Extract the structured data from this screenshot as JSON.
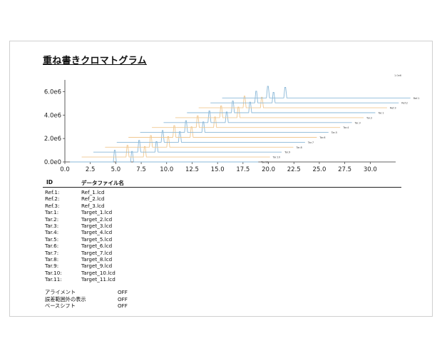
{
  "report": {
    "title": "重ね書きクロマトグラム"
  },
  "chart_data": {
    "type": "line",
    "title": "重ね書きクロマトグラム",
    "xlabel": "",
    "ylabel": "",
    "xlim": [
      0,
      32.5
    ],
    "ylim": [
      0,
      7000000
    ],
    "x_ticks": [
      "0.0",
      "2.5",
      "5.0",
      "7.5",
      "10.0",
      "12.5",
      "15.0",
      "17.5",
      "20.0",
      "22.5",
      "25.0",
      "27.5",
      "30.0"
    ],
    "y_ticks": [
      "0.0e0",
      "2.0e6",
      "4.0e6",
      "6.0e6"
    ],
    "offset_scale_label": "1.0e6",
    "series": [
      {
        "name": "Tar.11",
        "color": "#8ab8d8",
        "peaks": [
          {
            "x": 4.9,
            "y": 1000000
          },
          {
            "x": 6.6,
            "y": 900000
          }
        ]
      },
      {
        "name": "Tar.10",
        "color": "#f0c890",
        "peaks": [
          {
            "x": 5.0,
            "y": 1000000
          },
          {
            "x": 6.7,
            "y": 900000
          }
        ]
      },
      {
        "name": "Tar.9",
        "color": "#8ab8d8",
        "peaks": [
          {
            "x": 5.0,
            "y": 1000000
          },
          {
            "x": 6.7,
            "y": 900000
          }
        ]
      },
      {
        "name": "Tar.8",
        "color": "#f0c890",
        "peaks": [
          {
            "x": 5.0,
            "y": 1000000
          },
          {
            "x": 6.7,
            "y": 900000
          }
        ]
      },
      {
        "name": "Tar.7",
        "color": "#8ab8d8",
        "peaks": [
          {
            "x": 5.0,
            "y": 1000000
          },
          {
            "x": 6.7,
            "y": 900000
          }
        ]
      },
      {
        "name": "Tar.6",
        "color": "#f0c890",
        "peaks": [
          {
            "x": 5.0,
            "y": 1000000
          },
          {
            "x": 6.7,
            "y": 900000
          }
        ]
      },
      {
        "name": "Tar.5",
        "color": "#8ab8d8",
        "peaks": [
          {
            "x": 5.0,
            "y": 1000000
          },
          {
            "x": 6.7,
            "y": 900000
          }
        ]
      },
      {
        "name": "Tar.4",
        "color": "#f0c890",
        "peaks": [
          {
            "x": 5.0,
            "y": 1000000
          },
          {
            "x": 6.7,
            "y": 900000
          }
        ]
      },
      {
        "name": "Tar.3",
        "color": "#8ab8d8",
        "peaks": [
          {
            "x": 5.0,
            "y": 1000000
          },
          {
            "x": 6.7,
            "y": 900000
          }
        ]
      },
      {
        "name": "Tar.2",
        "color": "#f0c890",
        "peaks": [
          {
            "x": 5.0,
            "y": 1000000
          },
          {
            "x": 6.7,
            "y": 900000
          }
        ]
      },
      {
        "name": "Tar.1",
        "color": "#8ab8d8",
        "peaks": [
          {
            "x": 5.0,
            "y": 1000000
          },
          {
            "x": 6.7,
            "y": 900000
          }
        ]
      },
      {
        "name": "Ref.3",
        "color": "#f0c890",
        "peaks": [
          {
            "x": 5.0,
            "y": 1000000
          },
          {
            "x": 6.7,
            "y": 900000
          }
        ]
      },
      {
        "name": "Ref.2",
        "color": "#8ab8d8",
        "peaks": [
          {
            "x": 5.0,
            "y": 1000000
          },
          {
            "x": 6.7,
            "y": 900000
          }
        ]
      },
      {
        "name": "Ref.1",
        "color": "#8ab8d8",
        "peaks": [
          {
            "x": 5.0,
            "y": 1000000
          },
          {
            "x": 6.7,
            "y": 900000
          }
        ]
      }
    ],
    "series_labels": [
      "Tar.11",
      "Tar.10",
      "Tar.9",
      "Tar.8",
      "Tar.7",
      "Tar.6",
      "Tar.5",
      "Tar.4",
      "Tar.3",
      "Tar.2",
      "Tar.1",
      "Ref.3",
      "Ref.2",
      "Ref.1"
    ],
    "grid": false,
    "legend": "inline-right"
  },
  "table": {
    "headers": [
      "ID",
      "データファイル名"
    ],
    "rows": [
      {
        "id": "Ref.1:",
        "file": "Ref_1.lcd"
      },
      {
        "id": "Ref.2:",
        "file": "Ref_2.lcd"
      },
      {
        "id": "Ref.3:",
        "file": "Ref_3.lcd"
      },
      {
        "id": "Tar.1:",
        "file": "Target_1.lcd"
      },
      {
        "id": "Tar.2:",
        "file": "Target_2.lcd"
      },
      {
        "id": "Tar.3:",
        "file": "Target_3.lcd"
      },
      {
        "id": "Tar.4:",
        "file": "Target_4.lcd"
      },
      {
        "id": "Tar.5:",
        "file": "Target_5.lcd"
      },
      {
        "id": "Tar.6:",
        "file": "Target_6.lcd"
      },
      {
        "id": "Tar.7:",
        "file": "Target_7.lcd"
      },
      {
        "id": "Tar.8:",
        "file": "Target_8.lcd"
      },
      {
        "id": "Tar.9:",
        "file": "Target_9.lcd"
      },
      {
        "id": "Tar.10:",
        "file": "Target_10.lcd"
      },
      {
        "id": "Tar.11:",
        "file": "Target_11.lcd"
      }
    ]
  },
  "settings": [
    {
      "label": "アライメント",
      "value": "OFF"
    },
    {
      "label": "誤差範囲外の表示",
      "value": "OFF"
    },
    {
      "label": "ベースシフト",
      "value": "OFF"
    }
  ]
}
